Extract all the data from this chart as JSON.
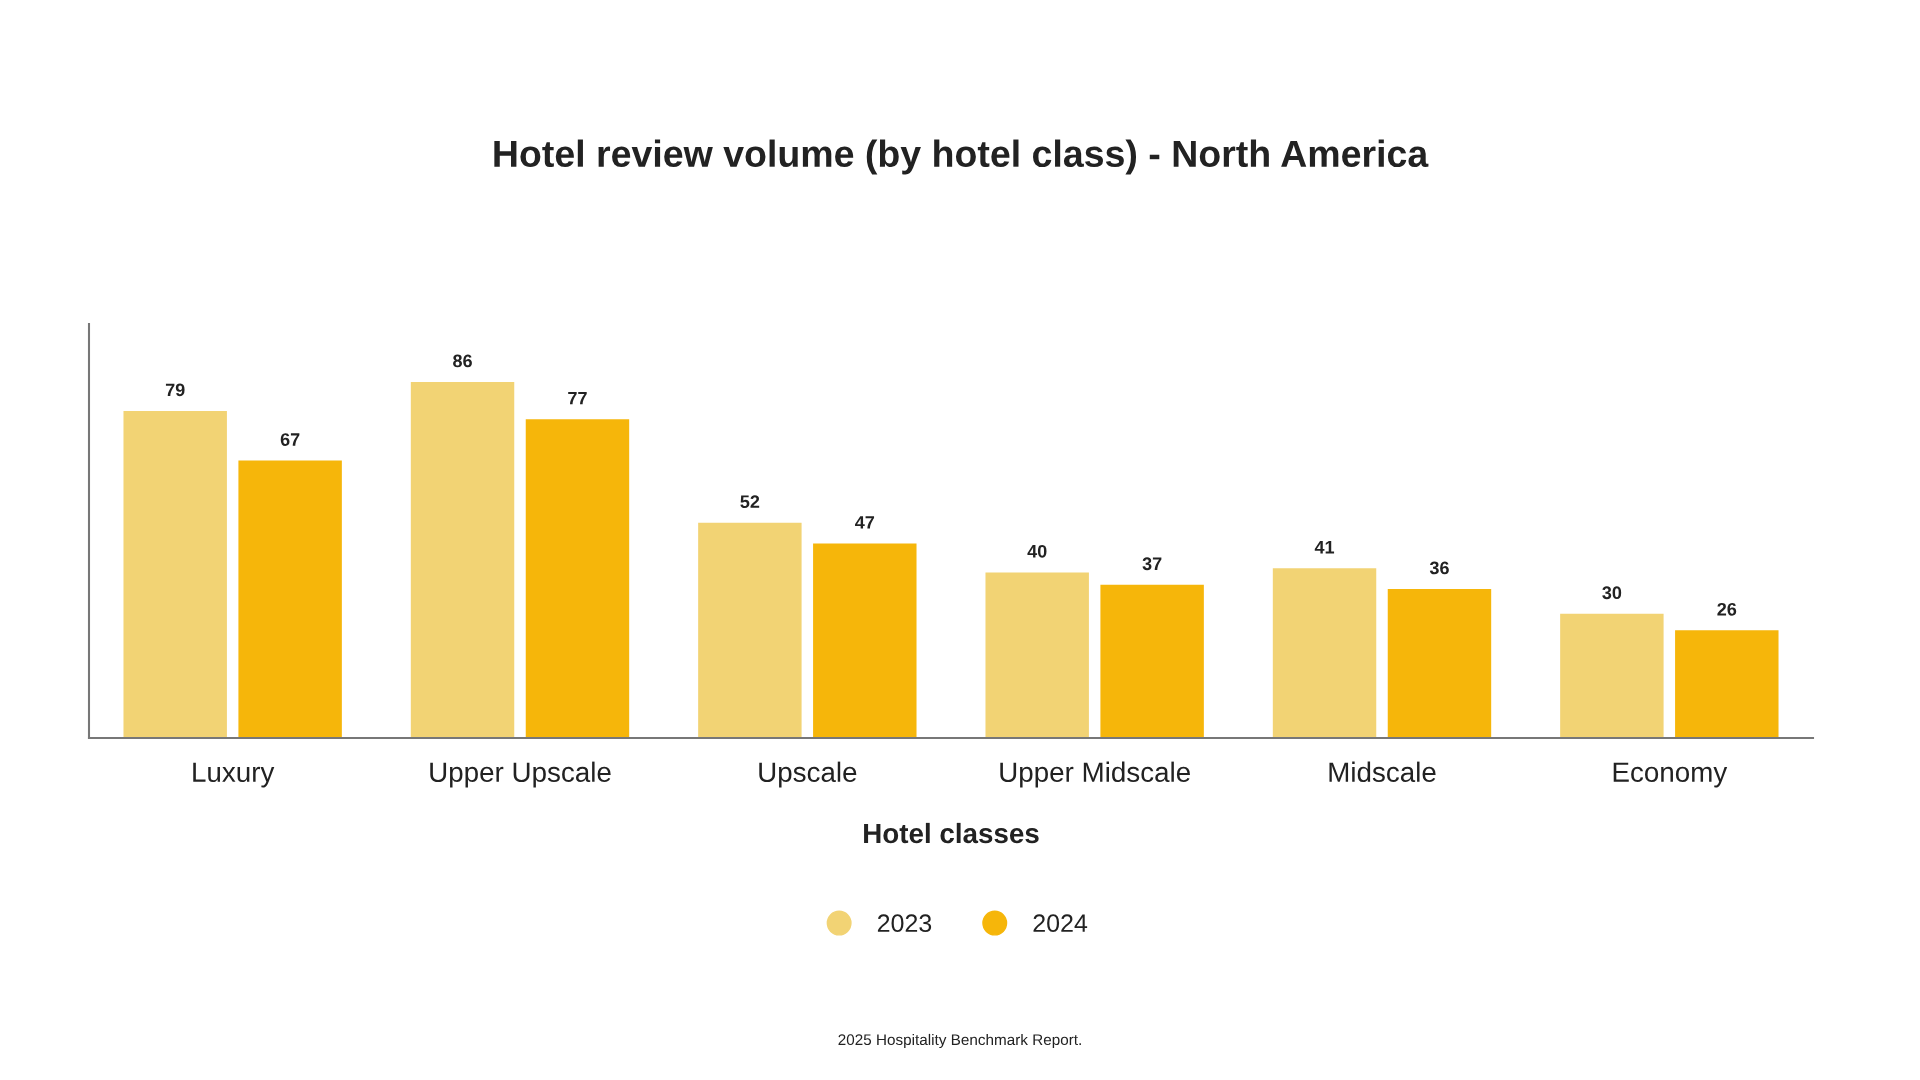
{
  "chart_data": {
    "type": "bar",
    "title": "Hotel review volume (by hotel class) - North America",
    "xlabel": "Hotel classes",
    "categories": [
      "Luxury",
      "Upper Upscale",
      "Upscale",
      "Upper Midscale",
      "Midscale",
      "Economy"
    ],
    "series": [
      {
        "name": "2023",
        "color": "#f2d374",
        "values": [
          79,
          86,
          52,
          40,
          41,
          30
        ]
      },
      {
        "name": "2024",
        "color": "#f6b60a",
        "values": [
          67,
          77,
          47,
          37,
          36,
          26
        ]
      }
    ],
    "ylim": [
      0,
      100
    ],
    "tick_labels": "x",
    "data_labels": true,
    "legend": "bottom",
    "grid": false,
    "annotations": [
      "2025 Hospitality Benchmark Report."
    ]
  }
}
